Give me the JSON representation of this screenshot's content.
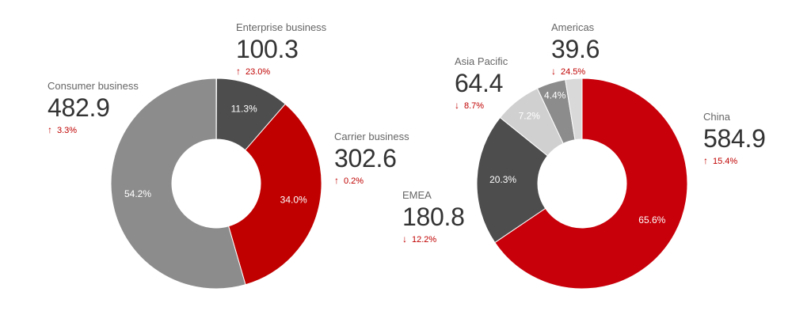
{
  "chart_data": [
    {
      "type": "pie",
      "donut": true,
      "categories": [
        "Consumer business",
        "Enterprise business",
        "Carrier business"
      ],
      "values": [
        482.9,
        100.3,
        302.6
      ],
      "percent_labels": [
        "54.2%",
        "11.3%",
        "34.0%"
      ],
      "changes": [
        "3.3%",
        "23.0%",
        "0.2%"
      ],
      "change_direction": [
        "up",
        "up",
        "up"
      ],
      "divider_value": 0.5,
      "colors": [
        "#8c8c8c",
        "#4d4d4d",
        "#c00000"
      ],
      "divider_color": "#c8c8c8"
    },
    {
      "type": "pie",
      "donut": true,
      "categories": [
        "China",
        "EMEA",
        "Asia Pacific",
        "Americas"
      ],
      "values": [
        584.9,
        180.8,
        64.4,
        39.6
      ],
      "percent_labels": [
        "65.6%",
        "20.3%",
        "7.2%",
        "4.4%"
      ],
      "changes": [
        "15.4%",
        "12.2%",
        "8.7%",
        "24.5%"
      ],
      "change_direction": [
        "up",
        "down",
        "down",
        "down"
      ],
      "other_value": 22.8,
      "other_percent_label": "",
      "colors": [
        "#c8000a",
        "#4d4d4d",
        "#d0d0d0",
        "#8c8c8c"
      ],
      "other_color": "#d9d9d9"
    }
  ],
  "arrows": {
    "up": "↑",
    "down": "↓"
  }
}
